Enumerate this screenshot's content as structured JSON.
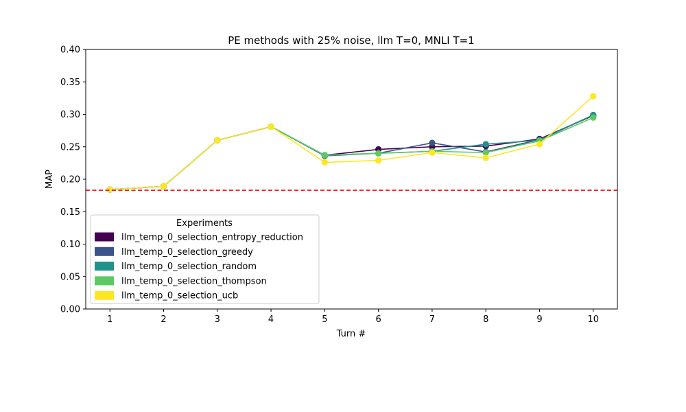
{
  "chart_data": {
    "type": "line",
    "title": "PE methods with 25% noise, llm T=0, MNLI T=1",
    "xlabel": "Turn #",
    "ylabel": "MAP",
    "x": [
      1,
      2,
      3,
      4,
      5,
      6,
      7,
      8,
      9,
      10
    ],
    "xlim": [
      0.55,
      10.45
    ],
    "ylim": [
      0.0,
      0.4
    ],
    "yticks": [
      "0.00",
      "0.05",
      "0.10",
      "0.15",
      "0.20",
      "0.25",
      "0.30",
      "0.35",
      "0.40"
    ],
    "xticks": [
      "1",
      "2",
      "3",
      "4",
      "5",
      "6",
      "7",
      "8",
      "9",
      "10"
    ],
    "grid": false,
    "baseline": {
      "value": 0.183,
      "color": "#ff0000",
      "style": "dashed"
    },
    "legend": {
      "title": "Experiments",
      "placement": "lower-left"
    },
    "series": [
      {
        "name": "llm_temp_0_selection_entropy_reduction",
        "color": "#440154",
        "values": [
          0.184,
          0.189,
          0.26,
          0.281,
          0.237,
          0.246,
          0.25,
          0.251,
          0.262,
          0.298
        ]
      },
      {
        "name": "llm_temp_0_selection_greedy",
        "color": "#3b528b",
        "values": [
          0.184,
          0.189,
          0.26,
          0.281,
          0.236,
          0.24,
          0.256,
          0.242,
          0.261,
          0.299
        ]
      },
      {
        "name": "llm_temp_0_selection_random",
        "color": "#21918c",
        "values": [
          0.184,
          0.189,
          0.26,
          0.281,
          0.237,
          0.24,
          0.243,
          0.254,
          0.26,
          0.299
        ]
      },
      {
        "name": "llm_temp_0_selection_thompson",
        "color": "#5ec962",
        "values": [
          0.184,
          0.189,
          0.26,
          0.281,
          0.237,
          0.24,
          0.243,
          0.241,
          0.259,
          0.295
        ]
      },
      {
        "name": "llm_temp_0_selection_ucb",
        "color": "#fde725",
        "values": [
          0.184,
          0.189,
          0.26,
          0.281,
          0.226,
          0.229,
          0.241,
          0.233,
          0.254,
          0.328
        ]
      }
    ]
  }
}
